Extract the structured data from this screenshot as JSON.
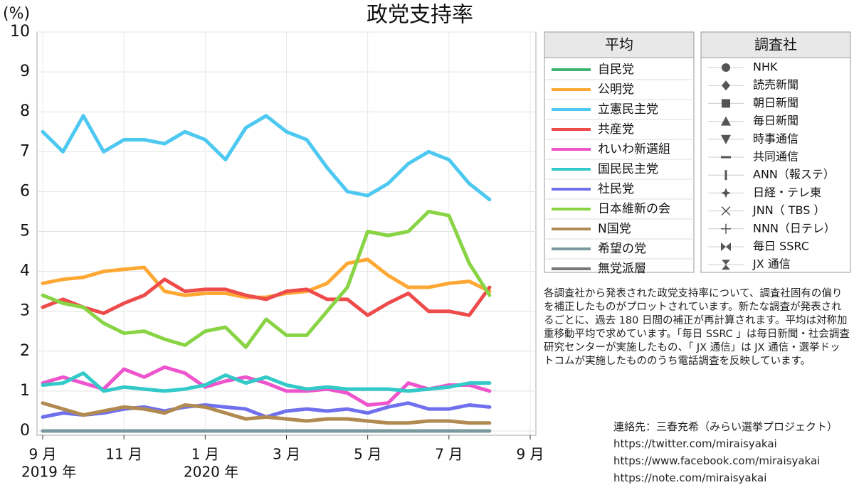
{
  "chart_data": {
    "type": "line",
    "title": "政党支持率",
    "y_unit": "(%)",
    "year_labels": [
      "2019 年",
      "2020 年"
    ],
    "xlim": [
      0,
      12
    ],
    "xticks": [
      {
        "value": 0,
        "label": "9 月"
      },
      {
        "value": 2,
        "label": "11 月"
      },
      {
        "value": 4,
        "label": "1 月"
      },
      {
        "value": 6,
        "label": "3 月"
      },
      {
        "value": 8,
        "label": "5 月"
      },
      {
        "value": 10,
        "label": "7 月"
      },
      {
        "value": 12,
        "label": "9 月"
      }
    ],
    "ylim": [
      0,
      10
    ],
    "yticks": [
      0,
      1,
      2,
      3,
      4,
      5,
      6,
      7,
      8,
      9,
      10
    ],
    "grid": true,
    "legend_title": "平均",
    "x": [
      0,
      0.5,
      1,
      1.5,
      2,
      2.5,
      3,
      3.5,
      4,
      4.5,
      5,
      5.5,
      6,
      6.5,
      7,
      7.5,
      8,
      8.5,
      9,
      9.5,
      10,
      10.5,
      11
    ],
    "series": [
      {
        "name": "自民党",
        "color": "#3cb371",
        "values": [
          null,
          null,
          null,
          null,
          null,
          null,
          null,
          null,
          null,
          null,
          null,
          null,
          null,
          null,
          null,
          null,
          null,
          null,
          null,
          null,
          null,
          null,
          null
        ]
      },
      {
        "name": "公明党",
        "color": "#ffa733",
        "values": [
          3.7,
          3.8,
          3.85,
          4.0,
          4.05,
          4.1,
          3.5,
          3.4,
          3.45,
          3.45,
          3.35,
          3.35,
          3.45,
          3.5,
          3.7,
          4.2,
          4.3,
          3.9,
          3.6,
          3.6,
          3.7,
          3.75,
          3.5
        ]
      },
      {
        "name": "立憲民主党",
        "color": "#4dc8f0",
        "values": [
          7.5,
          7.0,
          7.9,
          7.0,
          7.3,
          7.3,
          7.2,
          7.5,
          7.3,
          6.8,
          7.6,
          7.9,
          7.5,
          7.3,
          6.6,
          6.0,
          5.9,
          6.2,
          6.7,
          7.0,
          6.8,
          6.2,
          5.8
        ]
      },
      {
        "name": "共産党",
        "color": "#ee4b4b",
        "values": [
          3.1,
          3.3,
          3.1,
          2.95,
          3.2,
          3.4,
          3.8,
          3.5,
          3.55,
          3.55,
          3.4,
          3.3,
          3.5,
          3.55,
          3.3,
          3.3,
          2.9,
          3.2,
          3.45,
          3.0,
          3.0,
          2.9,
          3.6
        ]
      },
      {
        "name": "れいわ新選組",
        "color": "#ee55cc",
        "values": [
          1.2,
          1.35,
          1.2,
          1.05,
          1.55,
          1.35,
          1.6,
          1.45,
          1.1,
          1.25,
          1.35,
          1.2,
          1.0,
          1.0,
          1.05,
          0.95,
          0.65,
          0.7,
          1.2,
          1.05,
          1.15,
          1.15,
          1.0
        ]
      },
      {
        "name": "国民民主党",
        "color": "#33c9c9",
        "values": [
          1.15,
          1.2,
          1.45,
          1.0,
          1.1,
          1.05,
          1.0,
          1.05,
          1.15,
          1.4,
          1.2,
          1.35,
          1.15,
          1.05,
          1.1,
          1.05,
          1.05,
          1.05,
          1.0,
          1.05,
          1.1,
          1.2,
          1.2
        ]
      },
      {
        "name": "社民党",
        "color": "#7070ee",
        "values": [
          0.35,
          0.45,
          0.4,
          0.45,
          0.55,
          0.6,
          0.5,
          0.6,
          0.65,
          0.6,
          0.55,
          0.35,
          0.5,
          0.55,
          0.5,
          0.55,
          0.45,
          0.6,
          0.7,
          0.55,
          0.55,
          0.65,
          0.6
        ]
      },
      {
        "name": "日本維新の会",
        "color": "#88d444",
        "values": [
          3.4,
          3.2,
          3.1,
          2.7,
          2.45,
          2.5,
          2.3,
          2.15,
          2.5,
          2.6,
          2.1,
          2.8,
          2.4,
          2.4,
          3.0,
          3.6,
          5.0,
          4.9,
          5.0,
          5.5,
          5.4,
          4.2,
          3.4
        ]
      },
      {
        "name": "N国党",
        "color": "#b08a50",
        "values": [
          0.7,
          0.55,
          0.4,
          0.5,
          0.6,
          0.55,
          0.45,
          0.65,
          0.6,
          0.45,
          0.3,
          0.35,
          0.3,
          0.25,
          0.3,
          0.3,
          0.25,
          0.2,
          0.2,
          0.25,
          0.25,
          0.2,
          0.2
        ]
      },
      {
        "name": "希望の党",
        "color": "#7a9aa0",
        "values": [
          0,
          0,
          0,
          0,
          0,
          0,
          0,
          0,
          0,
          0,
          0,
          0,
          0,
          0,
          0,
          0,
          0,
          0,
          0,
          0,
          0,
          0,
          0
        ]
      },
      {
        "name": "無党派層",
        "color": "#777777",
        "values": [
          null,
          null,
          null,
          null,
          null,
          null,
          null,
          null,
          null,
          null,
          null,
          null,
          null,
          null,
          null,
          null,
          null,
          null,
          null,
          null,
          null,
          null,
          null
        ]
      }
    ]
  },
  "survey_legend": {
    "title": "調査社",
    "items": [
      "NHK",
      "読売新聞",
      "朝日新聞",
      "毎日新聞",
      "時事通信",
      "共同通信",
      "ANN（報ステ）",
      "日経・テレ東",
      "JNN（ TBS ）",
      "NNN（日テレ）",
      "毎日 SSRC",
      "JX 通信"
    ]
  },
  "note": "各調査社から発表された政党支持率について、調査社固有の偏りを補正したものがプロットされています。新たな調査が発表されるごとに、過去 180 日間の補正が再計算されます。平均は対称加重移動平均で求めています。「毎日 SSRC 」は毎日新聞・社会調査研究センターが実施したもの、「 JX 通信」は JX 通信・選挙ドットコムが実施したもののうち電話調査を反映しています。",
  "contact": [
    "連絡先：三春充希（みらい選挙プロジェクト）",
    "https://twitter.com/miraisyakai",
    "https://www.facebook.com/miraisyakai",
    "https://note.com/miraisyakai"
  ]
}
